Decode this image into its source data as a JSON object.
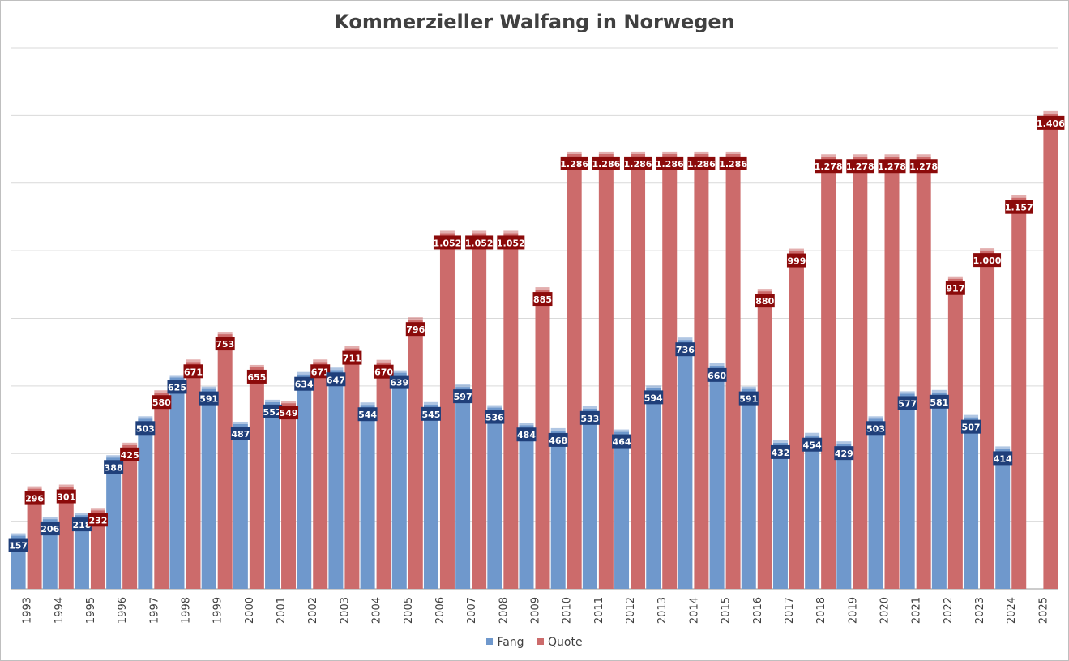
{
  "chart_data": {
    "type": "bar",
    "title": "Kommerzieller Walfang in Norwegen",
    "xlabel": "",
    "ylabel": "",
    "ylim": [
      0,
      1600
    ],
    "grid": true,
    "legend_position": "bottom",
    "categories": [
      "1993",
      "1994",
      "1995",
      "1996",
      "1997",
      "1998",
      "1999",
      "2000",
      "2001",
      "2002",
      "2003",
      "2004",
      "2005",
      "2006",
      "2007",
      "2008",
      "2009",
      "2010",
      "2011",
      "2012",
      "2013",
      "2014",
      "2015",
      "2016",
      "2017",
      "2018",
      "2019",
      "2020",
      "2021",
      "2022",
      "2023",
      "2024",
      "2025"
    ],
    "series": [
      {
        "name": "Fang",
        "color": "#6f98cc",
        "label_color": "#1f3f7a",
        "values": [
          157,
          206,
          218,
          388,
          503,
          625,
          591,
          487,
          552,
          634,
          647,
          544,
          639,
          545,
          597,
          536,
          484,
          468,
          533,
          464,
          594,
          736,
          660,
          591,
          432,
          454,
          429,
          503,
          577,
          581,
          507,
          414,
          null
        ],
        "labels": [
          "157",
          "206",
          "218",
          "388",
          "503",
          "625",
          "591",
          "487",
          "552",
          "634",
          "647",
          "544",
          "639",
          "545",
          "597",
          "536",
          "484",
          "468",
          "533",
          "464",
          "594",
          "736",
          "660",
          "591",
          "432",
          "454",
          "429",
          "503",
          "577",
          "581",
          "507",
          "414",
          ""
        ]
      },
      {
        "name": "Quote",
        "color": "#cc6b6b",
        "label_color": "#8b0a0a",
        "values": [
          296,
          301,
          232,
          425,
          580,
          671,
          753,
          655,
          549,
          671,
          711,
          670,
          796,
          1052,
          1052,
          1052,
          885,
          1286,
          1286,
          1286,
          1286,
          1286,
          1286,
          880,
          999,
          1278,
          1278,
          1278,
          1278,
          917,
          1000,
          1157,
          1406
        ],
        "labels": [
          "296",
          "301",
          "232",
          "425",
          "580",
          "671",
          "753",
          "655",
          "549",
          "671",
          "711",
          "670",
          "796",
          "1.052",
          "1.052",
          "1.052",
          "885",
          "1.286",
          "1.286",
          "1.286",
          "1.286",
          "1.286",
          "1.286",
          "880",
          "999",
          "1.278",
          "1.278",
          "1.278",
          "1.278",
          "917",
          "1.000",
          "1.157",
          "1.406"
        ]
      }
    ]
  }
}
